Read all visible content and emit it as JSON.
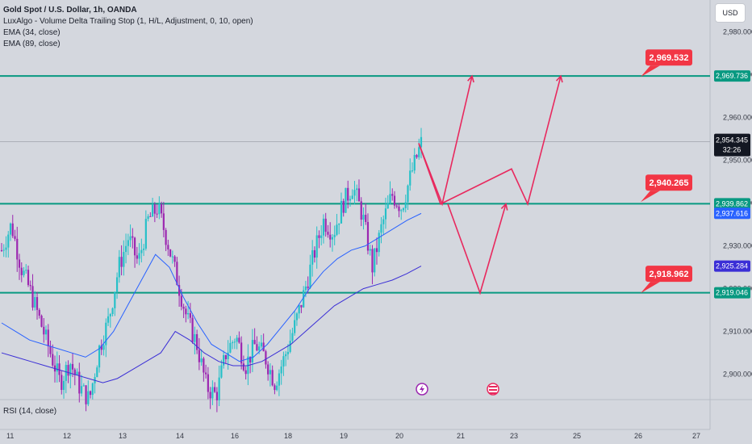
{
  "header": {
    "title": "Gold Spot / U.S. Dollar, 1h, OANDA",
    "indicators": [
      "LuxAlgo - Volume Delta Trailing Stop (1, H/L, Adjustment, 0, 10, open)",
      "EMA (34, close)",
      "EMA (89, close)"
    ],
    "currency": "USD"
  },
  "rsi_label": "RSI (14, close)",
  "chart_data": {
    "type": "candlestick",
    "ylim": [
      2893.5,
      2987.5
    ],
    "y_ticks": [
      "2,980.000",
      "2,970.000",
      "2,960.000",
      "2,950.000",
      "2,940.000",
      "2,930.000",
      "2,920.000",
      "2,910.000",
      "2,900.000"
    ],
    "x_ticks": [
      "11",
      "12",
      "13",
      "14",
      "16",
      "18",
      "19",
      "20",
      "21",
      "23",
      "25",
      "26",
      "27"
    ],
    "current": {
      "price": "2,954.345",
      "countdown": "32:26",
      "value": 2954.345
    },
    "levels": [
      {
        "price": 2969.736,
        "label": "2,969.736"
      },
      {
        "price": 2939.862,
        "label": "2,939.862"
      },
      {
        "price": 2919.046,
        "label": "2,919.046"
      }
    ],
    "ema_tags": [
      {
        "label": "2,937.616",
        "value": 2937.616,
        "color": "#2962ff"
      },
      {
        "label": "2,925.284",
        "value": 2925.284,
        "color": "#3b2fd6"
      }
    ],
    "callouts": [
      {
        "label": "2,969.532",
        "value": 2969.532
      },
      {
        "label": "2,940.265",
        "value": 2940.265
      },
      {
        "label": "2,918.962",
        "value": 2918.962
      }
    ],
    "price_path": [
      2929,
      2935,
      2925,
      2919,
      2912,
      2905,
      2898,
      2903,
      2897,
      2894,
      2906,
      2913,
      2925,
      2932,
      2926,
      2936,
      2939,
      2931,
      2922,
      2913,
      2907,
      2897,
      2895,
      2905,
      2909,
      2902,
      2907,
      2904,
      2898,
      2904,
      2911,
      2919,
      2928,
      2936,
      2933,
      2940,
      2944,
      2937,
      2925,
      2935,
      2942,
      2939,
      2947,
      2954
    ],
    "ema34": [
      2912,
      2910,
      2908,
      2907,
      2906,
      2905,
      2904,
      2906,
      2910,
      2916,
      2922,
      2928,
      2925,
      2918,
      2912,
      2907,
      2905,
      2903,
      2904,
      2907,
      2911,
      2915,
      2920,
      2924,
      2927,
      2929,
      2930,
      2932,
      2934,
      2936,
      2937.6
    ],
    "ema89": [
      2905,
      2904,
      2903,
      2902,
      2901,
      2900,
      2899,
      2898,
      2899,
      2901,
      2903,
      2905,
      2910,
      2908,
      2905,
      2903,
      2902,
      2902,
      2903,
      2905,
      2907,
      2910,
      2913,
      2916,
      2918,
      2920,
      2921,
      2922,
      2923.5,
      2925.3
    ],
    "projections": [
      {
        "points": [
          [
            519,
            2954
          ],
          [
            548,
            2939.8
          ],
          [
            585,
            2969.7
          ]
        ]
      },
      {
        "points": [
          [
            519,
            2954
          ],
          [
            546,
            2939.8
          ],
          [
            634,
            2948
          ],
          [
            654,
            2939.8
          ],
          [
            695,
            2969.7
          ]
        ]
      },
      {
        "points": [
          [
            555,
            2939.8
          ],
          [
            595,
            2919
          ],
          [
            627,
            2939.8
          ]
        ]
      }
    ],
    "colors": {
      "level": "#089981",
      "up": "#26c0c8",
      "down": "#9c27b0",
      "projection": "#e8295e",
      "callout": "#f23645",
      "ema34": "#2962ff",
      "ema89": "#3b2fd6"
    }
  }
}
